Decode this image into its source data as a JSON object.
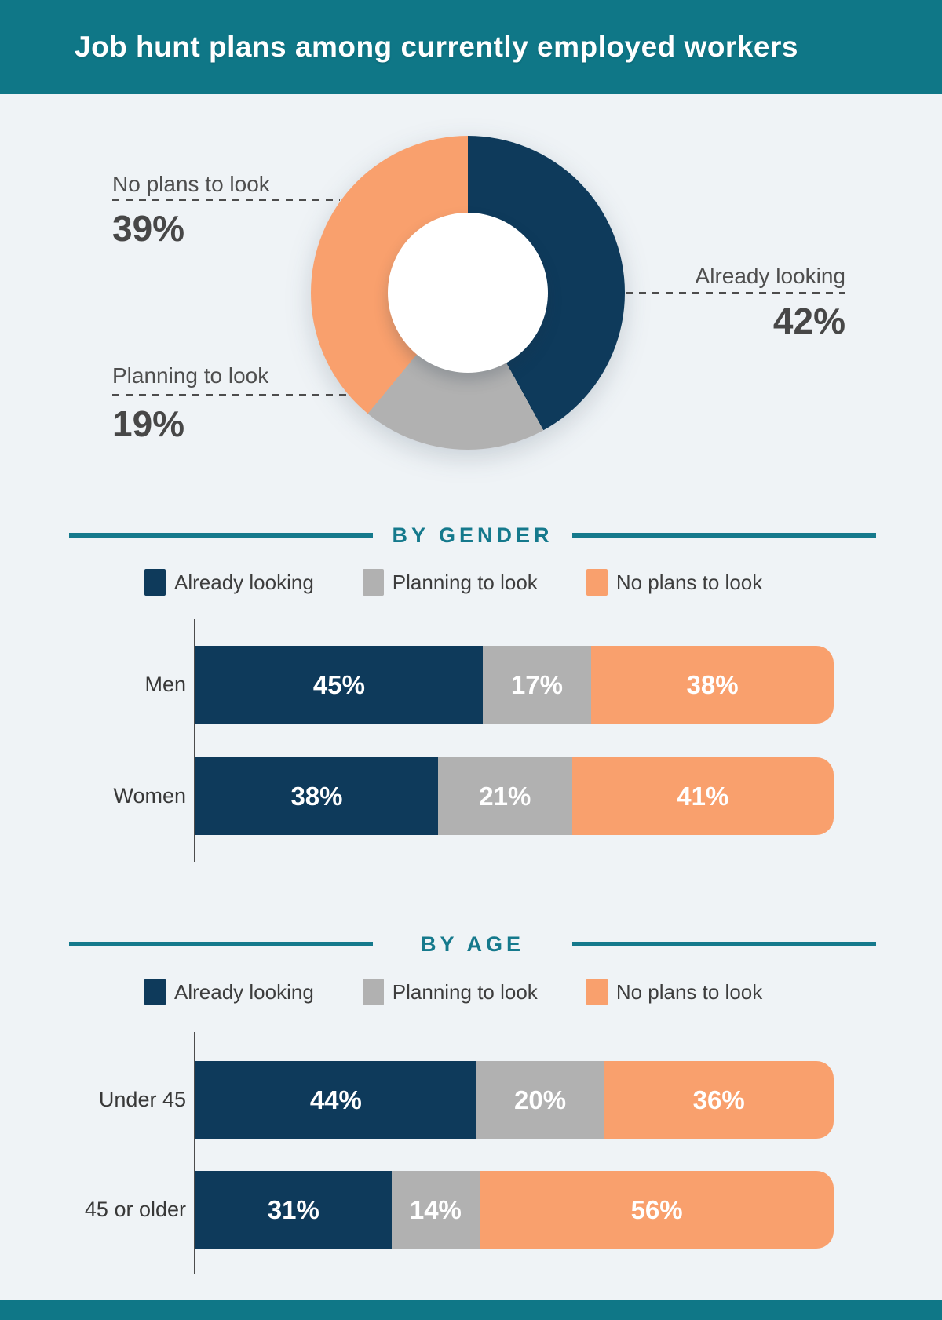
{
  "title": "Job hunt plans among currently employed workers",
  "colors": {
    "teal_band": "#0f7787",
    "teal_heading": "#15798c",
    "navy": "#0e3a5b",
    "gray": "#b1b1b1",
    "orange": "#f9a06d",
    "background": "#eff3f6",
    "label_text": "#4e4e4e",
    "white": "#ffffff"
  },
  "chart_data": [
    {
      "type": "pie",
      "subtype": "donut",
      "title": "Job hunt plans among currently employed workers",
      "labels": [
        "Already looking",
        "Planning to look",
        "No plans to look"
      ],
      "values": [
        42,
        19,
        39
      ],
      "unit": "%",
      "colors": [
        "#0e3a5b",
        "#b1b1b1",
        "#f9a06d"
      ],
      "start_angle_deg": 0,
      "direction": "clockwise",
      "inner_radius_ratio": 0.51
    },
    {
      "type": "bar",
      "subtype": "horizontal-stacked",
      "title": "BY GENDER",
      "categories": [
        "Men",
        "Women"
      ],
      "series": [
        {
          "name": "Already looking",
          "values": [
            45,
            38
          ]
        },
        {
          "name": "Planning to look",
          "values": [
            17,
            21
          ]
        },
        {
          "name": "No plans to look",
          "values": [
            38,
            41
          ]
        }
      ],
      "unit": "%",
      "xlim": [
        0,
        100
      ],
      "legend_position": "top",
      "grid": false
    },
    {
      "type": "bar",
      "subtype": "horizontal-stacked",
      "title": "BY AGE",
      "categories": [
        "Under 45",
        "45 or older"
      ],
      "series": [
        {
          "name": "Already looking",
          "values": [
            44,
            31
          ]
        },
        {
          "name": "Planning to look",
          "values": [
            20,
            14
          ]
        },
        {
          "name": "No plans to look",
          "values": [
            36,
            56
          ]
        }
      ],
      "unit": "%",
      "xlim": [
        0,
        100
      ],
      "legend_position": "top",
      "grid": false
    }
  ],
  "donut_callouts": {
    "no_plans": {
      "label": "No plans to look",
      "value": "39%"
    },
    "planning": {
      "label": "Planning to look",
      "value": "19%"
    },
    "already": {
      "label": "Already looking",
      "value": "42%"
    }
  },
  "gender": {
    "heading": "BY GENDER",
    "legend": [
      {
        "label": "Already looking"
      },
      {
        "label": "Planning to look"
      },
      {
        "label": "No plans to look"
      }
    ],
    "rows": [
      {
        "label": "Men",
        "segments": [
          {
            "value": "45%"
          },
          {
            "value": "17%"
          },
          {
            "value": "38%"
          }
        ]
      },
      {
        "label": "Women",
        "segments": [
          {
            "value": "38%"
          },
          {
            "value": "21%"
          },
          {
            "value": "41%"
          }
        ]
      }
    ]
  },
  "age": {
    "heading": "BY AGE",
    "legend": [
      {
        "label": "Already looking"
      },
      {
        "label": "Planning to look"
      },
      {
        "label": "No plans to look"
      }
    ],
    "rows": [
      {
        "label": "Under 45",
        "segments": [
          {
            "value": "44%"
          },
          {
            "value": "20%"
          },
          {
            "value": "36%"
          }
        ]
      },
      {
        "label": "45 or older",
        "segments": [
          {
            "value": "31%"
          },
          {
            "value": "14%"
          },
          {
            "value": "56%"
          }
        ]
      }
    ]
  }
}
